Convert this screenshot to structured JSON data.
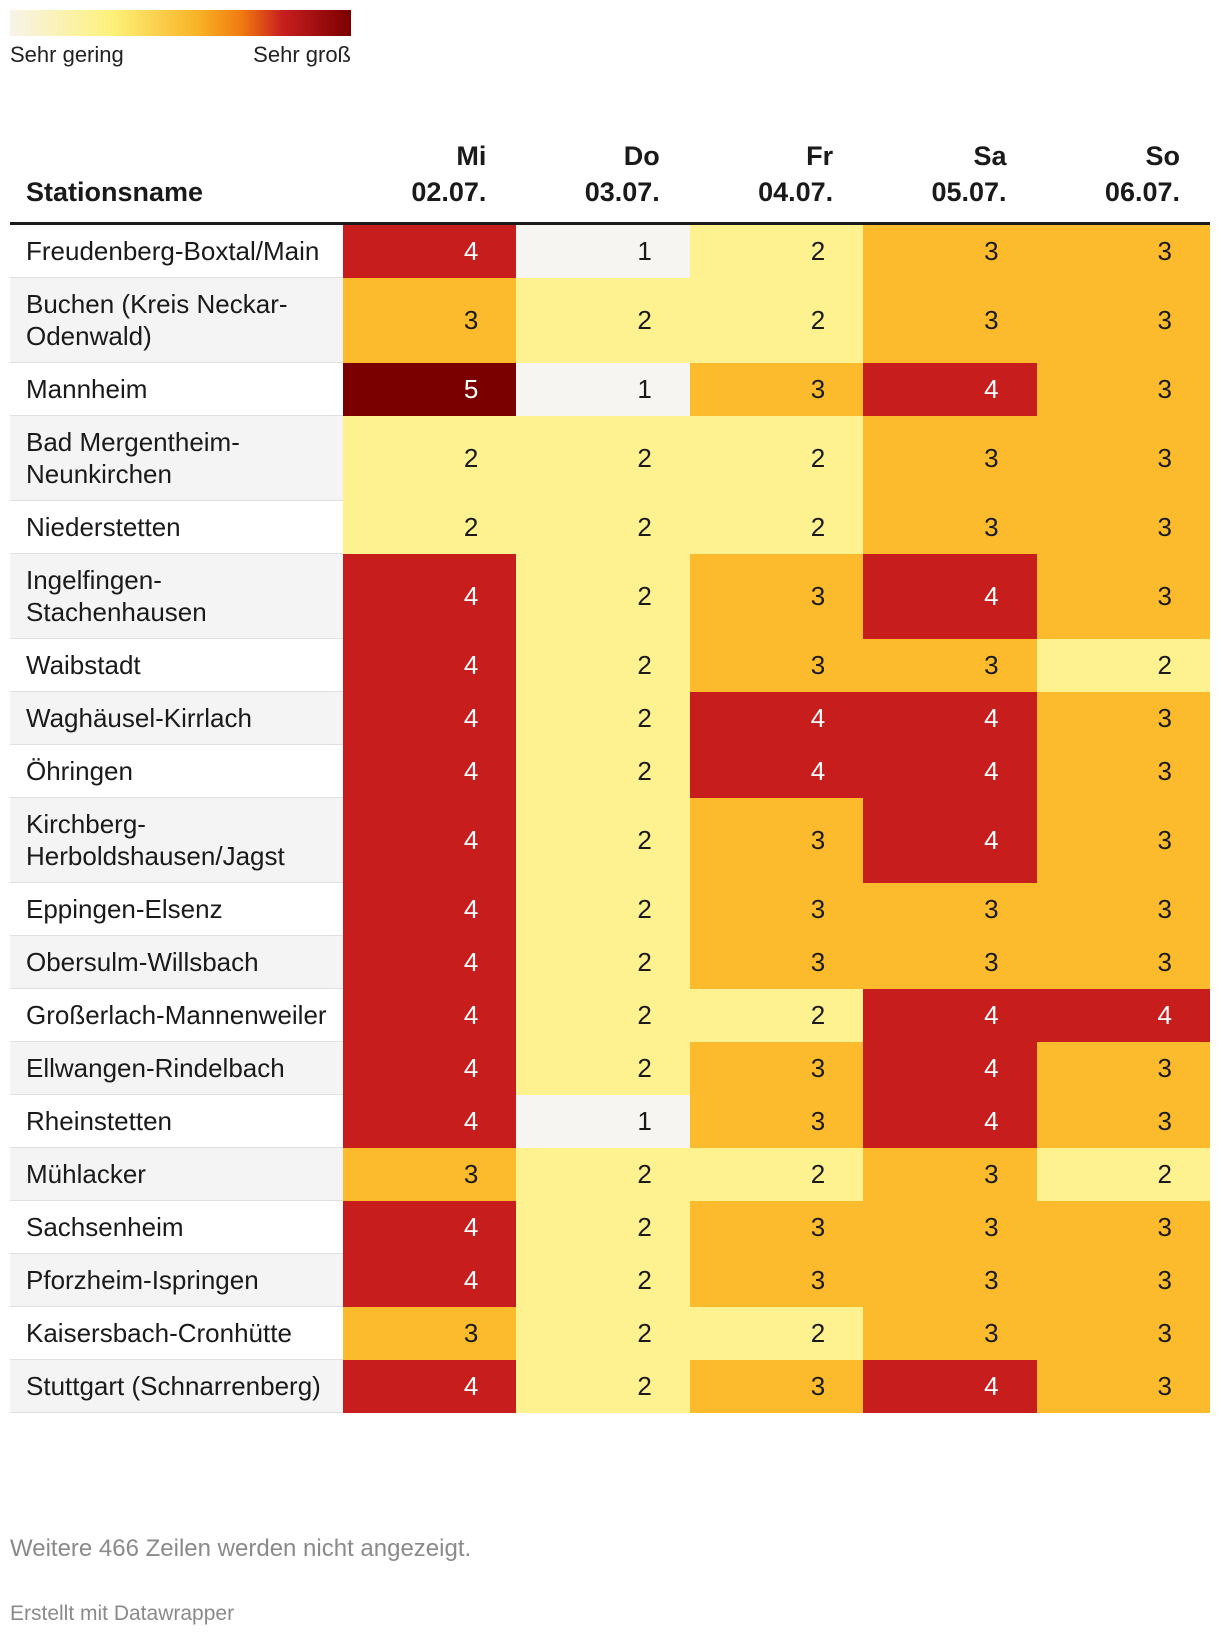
{
  "legend": {
    "low_label": "Sehr gering",
    "high_label": "Sehr groß"
  },
  "colors": {
    "1": "#f7f5f1",
    "2": "#fdf190",
    "3": "#fbbb2c",
    "4": "#c81d1d",
    "5": "#7a0000"
  },
  "chart_data": {
    "type": "heatmap",
    "columns": [
      {
        "key": "name",
        "label": "Stationsname"
      },
      {
        "day": "Mi",
        "date": "02.07."
      },
      {
        "day": "Do",
        "date": "03.07."
      },
      {
        "day": "Fr",
        "date": "04.07."
      },
      {
        "day": "Sa",
        "date": "05.07."
      },
      {
        "day": "So",
        "date": "06.07."
      }
    ],
    "rows": [
      {
        "name": "Freudenberg-Boxtal/Main",
        "values": [
          4,
          1,
          2,
          3,
          3
        ]
      },
      {
        "name": "Buchen (Kreis Neckar-Odenwald)",
        "values": [
          3,
          2,
          2,
          3,
          3
        ]
      },
      {
        "name": "Mannheim",
        "values": [
          5,
          1,
          3,
          4,
          3
        ]
      },
      {
        "name": "Bad Mergentheim-Neunkirchen",
        "values": [
          2,
          2,
          2,
          3,
          3
        ]
      },
      {
        "name": "Niederstetten",
        "values": [
          2,
          2,
          2,
          3,
          3
        ]
      },
      {
        "name": "Ingelfingen-Stachenhausen",
        "values": [
          4,
          2,
          3,
          4,
          3
        ]
      },
      {
        "name": "Waibstadt",
        "values": [
          4,
          2,
          3,
          3,
          2
        ]
      },
      {
        "name": "Waghäusel-Kirrlach",
        "values": [
          4,
          2,
          4,
          4,
          3
        ]
      },
      {
        "name": "Öhringen",
        "values": [
          4,
          2,
          4,
          4,
          3
        ]
      },
      {
        "name": "Kirchberg-Herboldshausen/Jagst",
        "values": [
          4,
          2,
          3,
          4,
          3
        ]
      },
      {
        "name": "Eppingen-Elsenz",
        "values": [
          4,
          2,
          3,
          3,
          3
        ]
      },
      {
        "name": "Obersulm-Willsbach",
        "values": [
          4,
          2,
          3,
          3,
          3
        ]
      },
      {
        "name": "Großerlach-Mannenweiler",
        "values": [
          4,
          2,
          2,
          4,
          4
        ]
      },
      {
        "name": "Ellwangen-Rindelbach",
        "values": [
          4,
          2,
          3,
          4,
          3
        ]
      },
      {
        "name": "Rheinstetten",
        "values": [
          4,
          1,
          3,
          4,
          3
        ]
      },
      {
        "name": "Mühlacker",
        "values": [
          3,
          2,
          2,
          3,
          2
        ]
      },
      {
        "name": "Sachsenheim",
        "values": [
          4,
          2,
          3,
          3,
          3
        ]
      },
      {
        "name": "Pforzheim-Ispringen",
        "values": [
          4,
          2,
          3,
          3,
          3
        ]
      },
      {
        "name": "Kaisersbach-Cronhütte",
        "values": [
          3,
          2,
          2,
          3,
          3
        ]
      },
      {
        "name": "Stuttgart (Schnarrenberg)",
        "values": [
          4,
          2,
          3,
          4,
          3
        ]
      }
    ]
  },
  "footer": {
    "more_rows": "Weitere 466 Zeilen werden nicht angezeigt.",
    "credit": "Erstellt mit Datawrapper"
  }
}
